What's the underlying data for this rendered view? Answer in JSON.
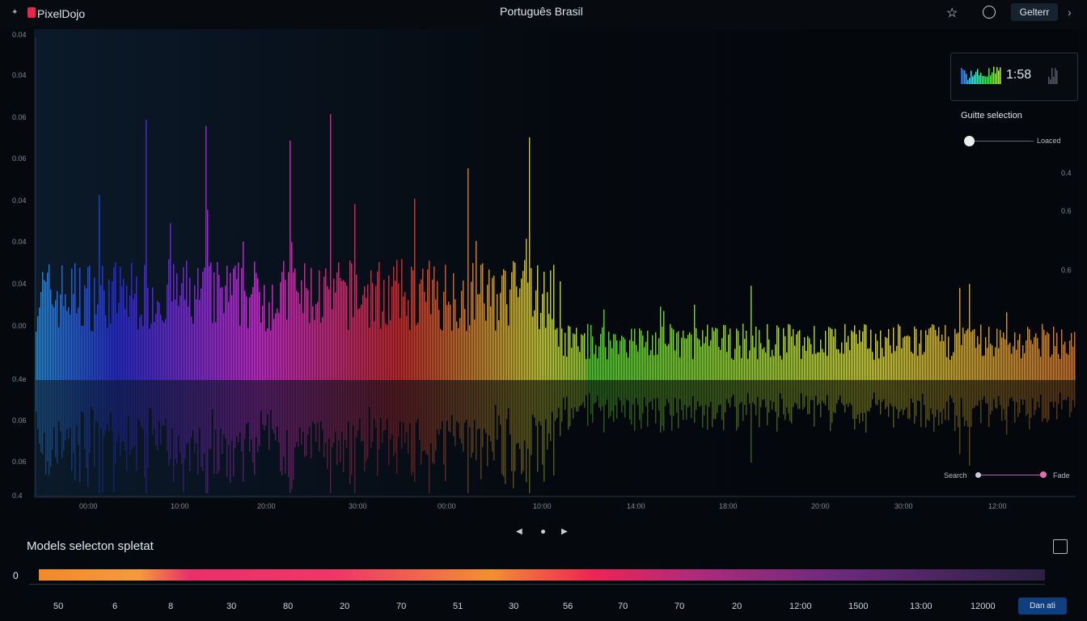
{
  "header": {
    "logo": "PixelDojo",
    "language": "Português Brasil",
    "button": "Gelterr"
  },
  "preview": {
    "time": "1:58"
  },
  "selection": {
    "label": "Guitte selection",
    "slider_label": "Loaced"
  },
  "waveform": {
    "y_labels": [
      "0.04",
      "0.04",
      "0.06",
      "0.06",
      "0.04",
      "0.04",
      "0.04",
      "0.00",
      "0.4e",
      "0.06",
      "0.06",
      "0.4"
    ],
    "right_labels": [
      "0.4",
      "0.6",
      "0.6"
    ],
    "x_labels": [
      "00:00",
      "10:00",
      "20:00",
      "30:00",
      "00:00",
      "10:00",
      "14:00",
      "18:00",
      "20:00",
      "30:00",
      "12:00"
    ],
    "search": "Search",
    "fade": "Fade"
  },
  "timeline": {
    "title": "Models selecton spletat",
    "zero": "0",
    "ticks": [
      "50",
      "6",
      "8",
      "30",
      "80",
      "20",
      "70",
      "51",
      "30",
      "56",
      "70",
      "70",
      "20",
      "12:00",
      "1500",
      "13:00",
      "12000"
    ],
    "button": "Dan ati"
  }
}
